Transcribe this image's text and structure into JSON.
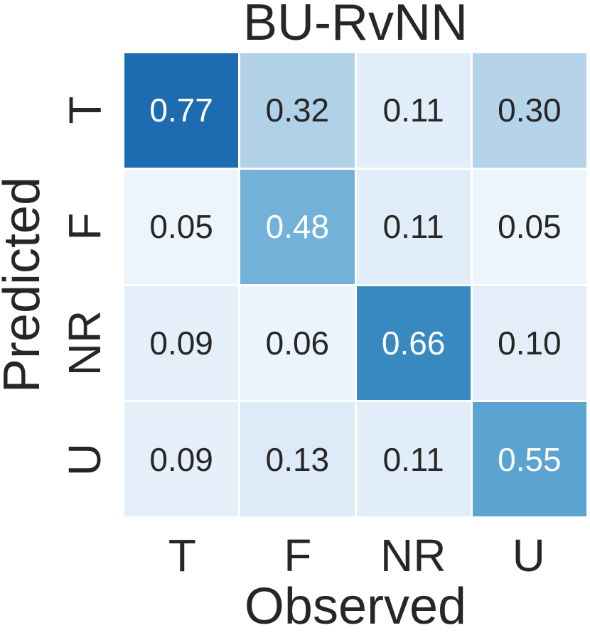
{
  "figure": {
    "background": "#ffffff",
    "text_color": "#262626"
  },
  "chart_data": {
    "type": "heatmap",
    "title": "BU-RvNN",
    "xlabel": "Observed",
    "ylabel": "Predicted",
    "x_ticklabels": [
      "T",
      "F",
      "NR",
      "U"
    ],
    "y_ticklabels": [
      "T",
      "F",
      "NR",
      "U"
    ],
    "rows": [
      [
        0.77,
        0.32,
        0.11,
        0.3
      ],
      [
        0.05,
        0.48,
        0.11,
        0.05
      ],
      [
        0.09,
        0.06,
        0.66,
        0.1
      ],
      [
        0.09,
        0.13,
        0.11,
        0.55
      ]
    ],
    "value_decimals": 2,
    "vmin": 0,
    "vmax": 1,
    "colormap": "Blues",
    "colormap_stops": [
      "#f7fbff",
      "#deebf7",
      "#c6dbef",
      "#9ecae1",
      "#6baed6",
      "#4292c6",
      "#2171b5",
      "#08519c",
      "#08306b"
    ],
    "cell_gap_color": "#ffffff",
    "annotation_colors": {
      "light": "#ffffff",
      "dark": "#262626"
    },
    "luminance_threshold": 0.408,
    "legend": "none",
    "grid": "off",
    "colorbar": "none"
  }
}
